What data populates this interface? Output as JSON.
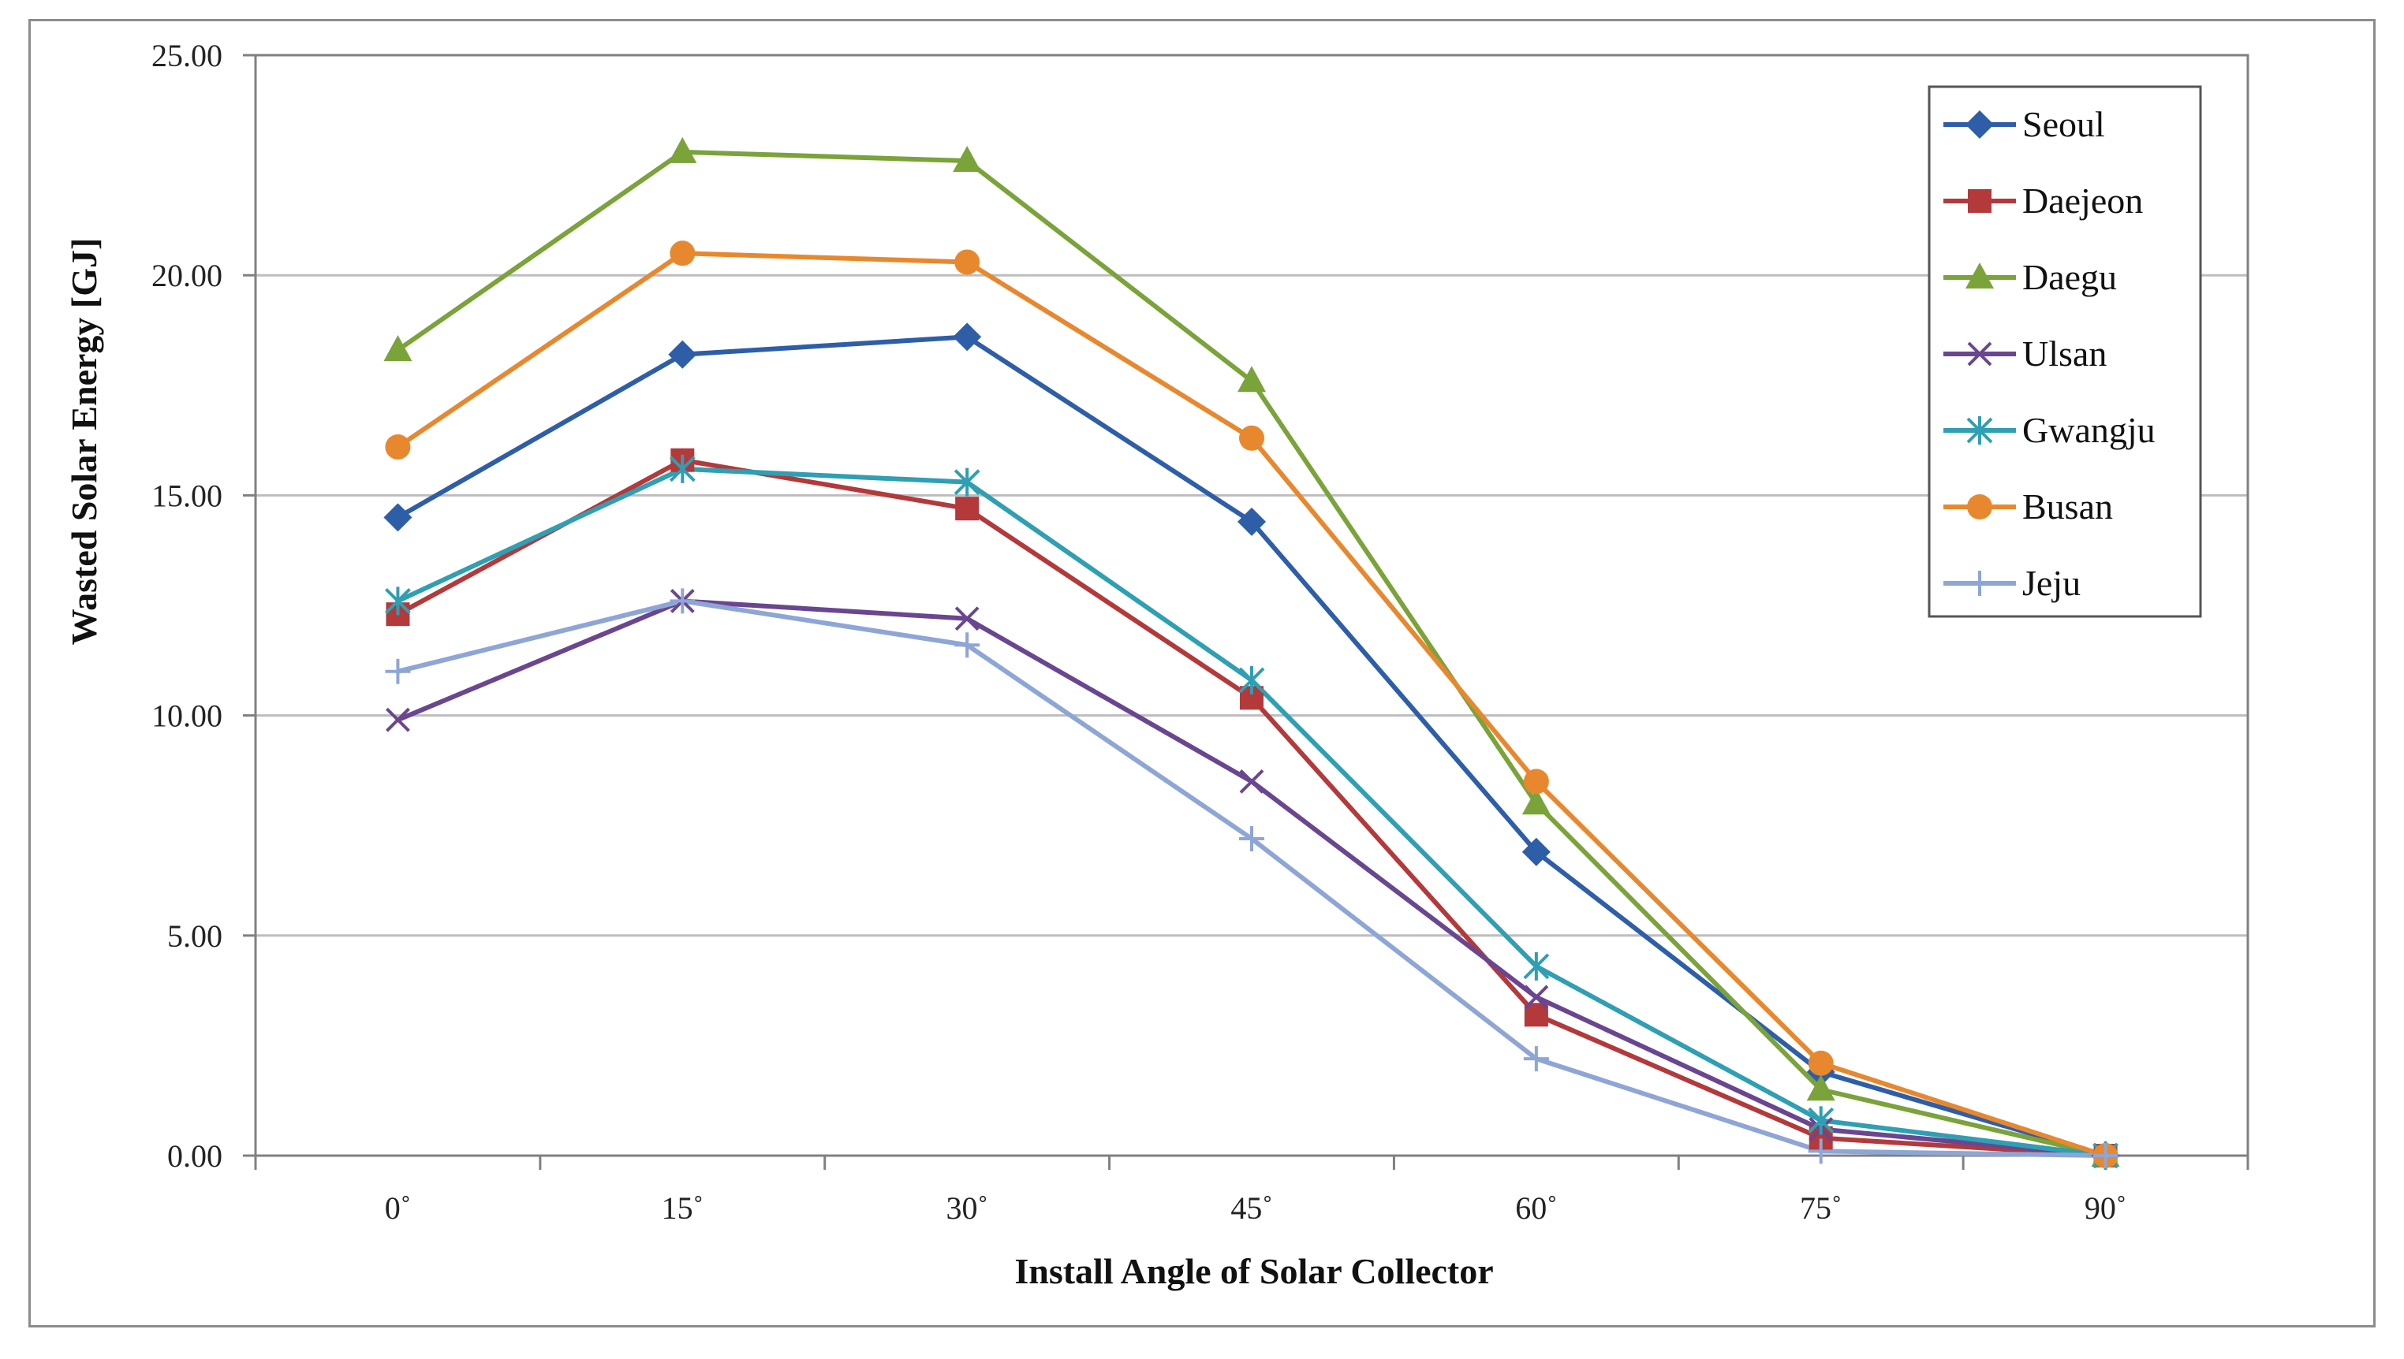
{
  "chart_data": {
    "type": "line",
    "title": "",
    "xlabel": "Install Angle of Solar Collector",
    "ylabel": "Wasted Solar Energy [GJ]",
    "categories": [
      "0˚",
      "15˚",
      "30˚",
      "45˚",
      "60˚",
      "75˚",
      "90˚"
    ],
    "ylim": [
      0,
      25
    ],
    "yticks": [
      "0.00",
      "5.00",
      "10.00",
      "15.00",
      "20.00",
      "25.00"
    ],
    "ytick_values": [
      0,
      5,
      10,
      15,
      20,
      25
    ],
    "grid": true,
    "legend_position": "top-right",
    "series": [
      {
        "name": "Seoul",
        "color": "#2e5ea8",
        "marker": "diamond",
        "values": [
          14.5,
          18.2,
          18.6,
          14.4,
          6.9,
          1.9,
          0.0
        ]
      },
      {
        "name": "Daejeon",
        "color": "#b3393b",
        "marker": "square",
        "values": [
          12.3,
          15.8,
          14.7,
          10.4,
          3.2,
          0.4,
          0.0
        ]
      },
      {
        "name": "Daegu",
        "color": "#7aa33a",
        "marker": "triangle",
        "values": [
          18.3,
          22.8,
          22.6,
          17.6,
          8.0,
          1.5,
          0.0
        ]
      },
      {
        "name": "Ulsan",
        "color": "#6a4690",
        "marker": "x",
        "values": [
          9.9,
          12.6,
          12.2,
          8.5,
          3.6,
          0.6,
          0.0
        ]
      },
      {
        "name": "Gwangju",
        "color": "#2f9fb3",
        "marker": "star",
        "values": [
          12.6,
          15.6,
          15.3,
          10.8,
          4.3,
          0.8,
          0.0
        ]
      },
      {
        "name": "Busan",
        "color": "#e8882e",
        "marker": "circle",
        "values": [
          16.1,
          20.5,
          20.3,
          16.3,
          8.5,
          2.1,
          0.0
        ]
      },
      {
        "name": "Jeju",
        "color": "#8ea6d6",
        "marker": "plus",
        "values": [
          11.0,
          12.6,
          11.6,
          7.2,
          2.2,
          0.1,
          0.0
        ]
      }
    ]
  }
}
